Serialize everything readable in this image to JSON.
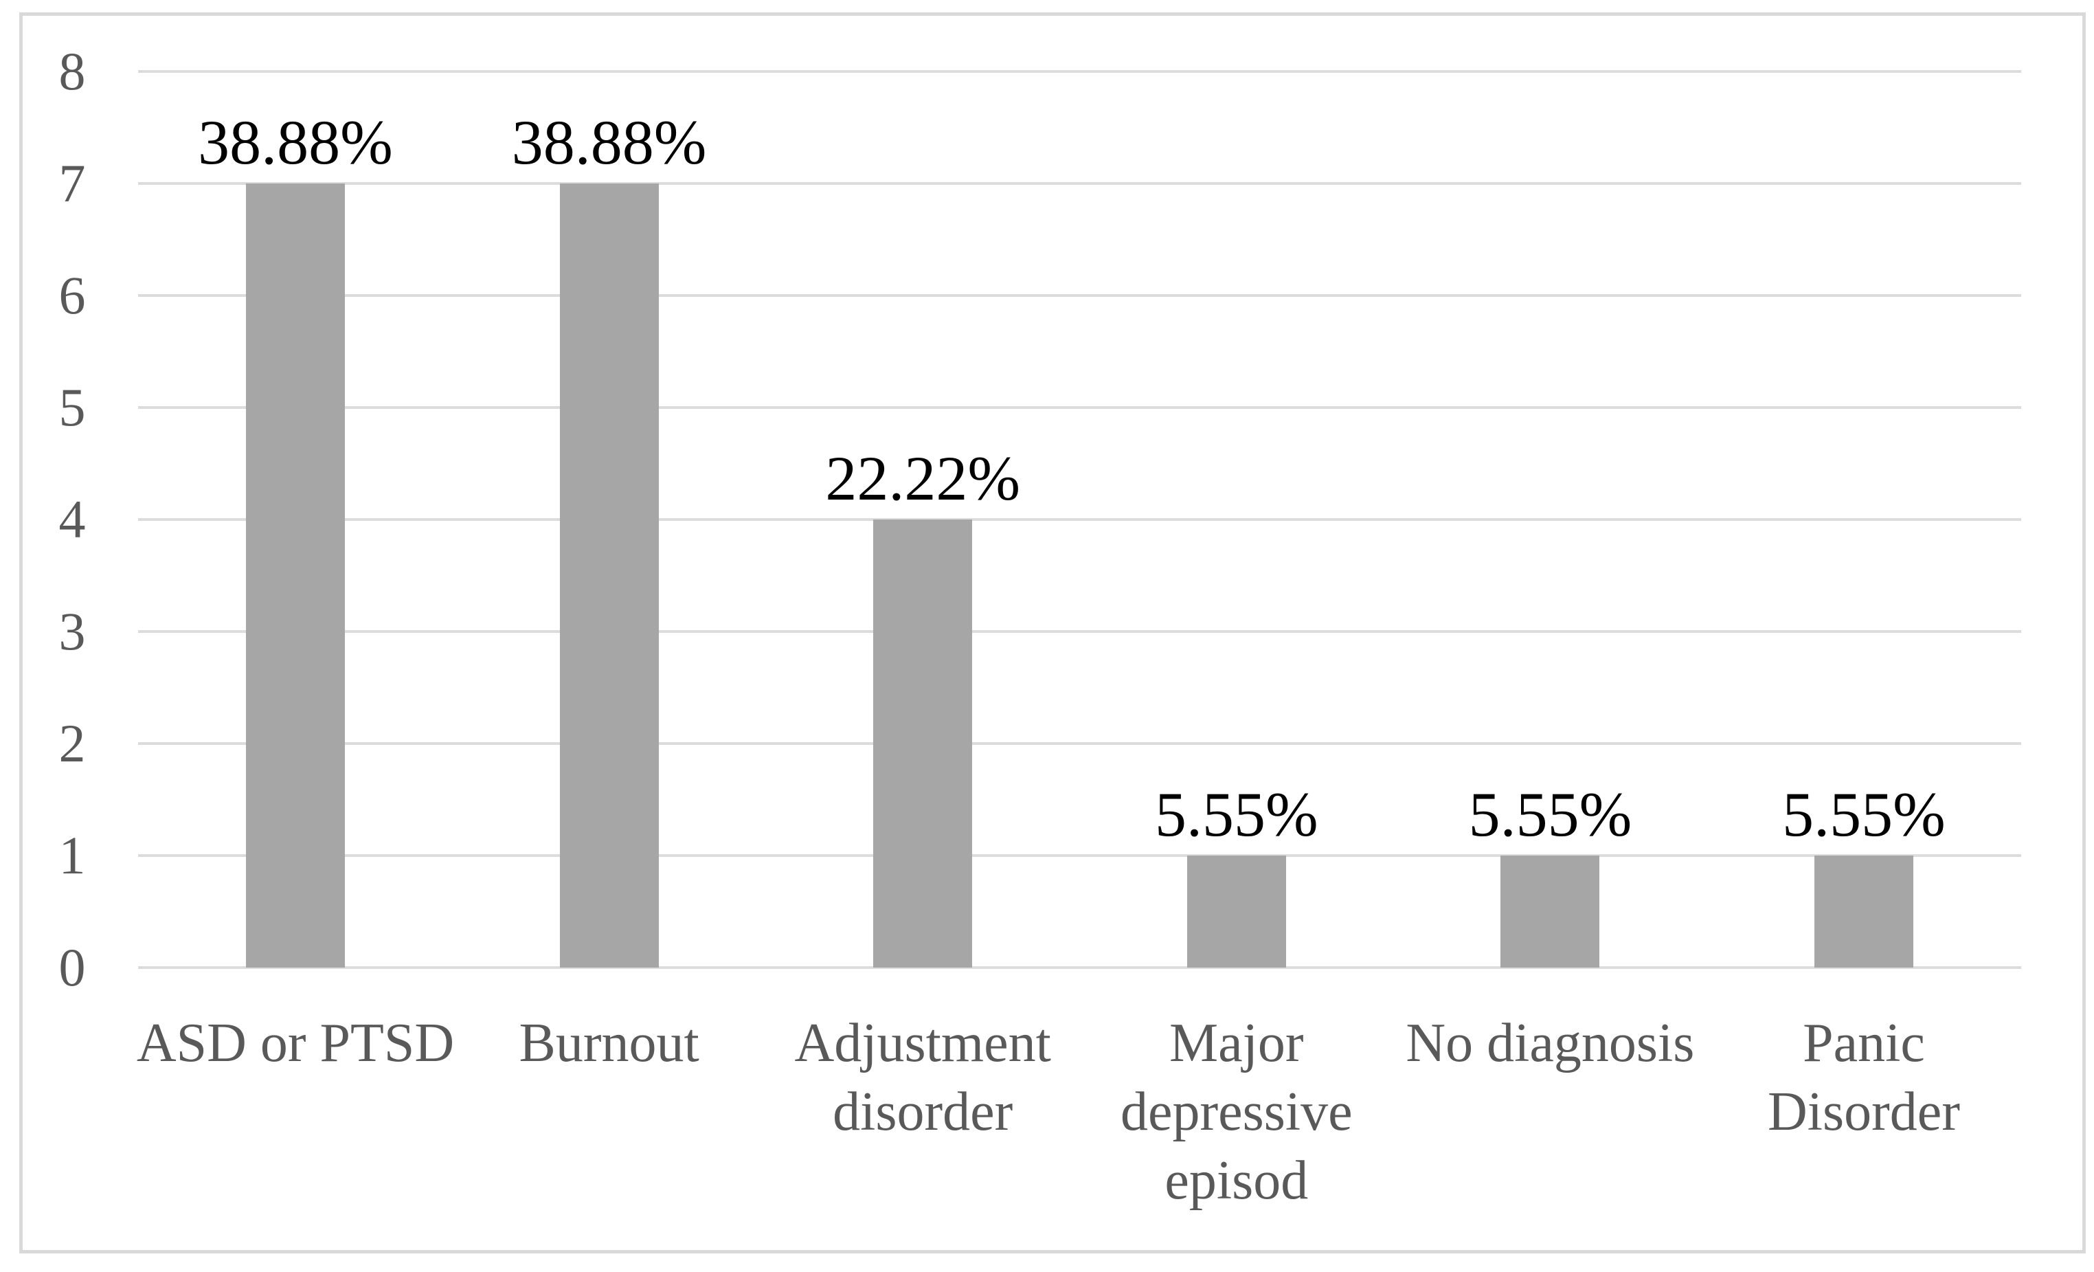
{
  "chart_data": {
    "type": "bar",
    "categories": [
      "ASD or PTSD",
      "Burnout",
      "Adjustment disorder",
      "Major depressive episod",
      "No diagnosis",
      "Panic Disorder"
    ],
    "category_lines": [
      [
        "ASD or PTSD"
      ],
      [
        "Burnout"
      ],
      [
        "Adjustment",
        "disorder"
      ],
      [
        "Major",
        "depressive",
        "episod"
      ],
      [
        "No diagnosis"
      ],
      [
        "Panic",
        "Disorder"
      ]
    ],
    "values": [
      7,
      7,
      4,
      1,
      1,
      1
    ],
    "data_labels": [
      "38.88%",
      "38.88%",
      "22.22%",
      "5.55%",
      "5.55%",
      "5.55%"
    ],
    "xlabel": "",
    "ylabel": "",
    "y_axis": {
      "min": 0,
      "max": 8,
      "ticks": [
        0,
        1,
        2,
        3,
        4,
        5,
        6,
        7,
        8
      ]
    },
    "grid": true,
    "legend": "none",
    "colors": {
      "bar_fill": "#a6a6a6",
      "gridline": "#dcdcdc",
      "axis_text": "#595959",
      "data_label_text": "#000000",
      "figure_border": "#d9d9d9",
      "background": "#ffffff"
    }
  }
}
